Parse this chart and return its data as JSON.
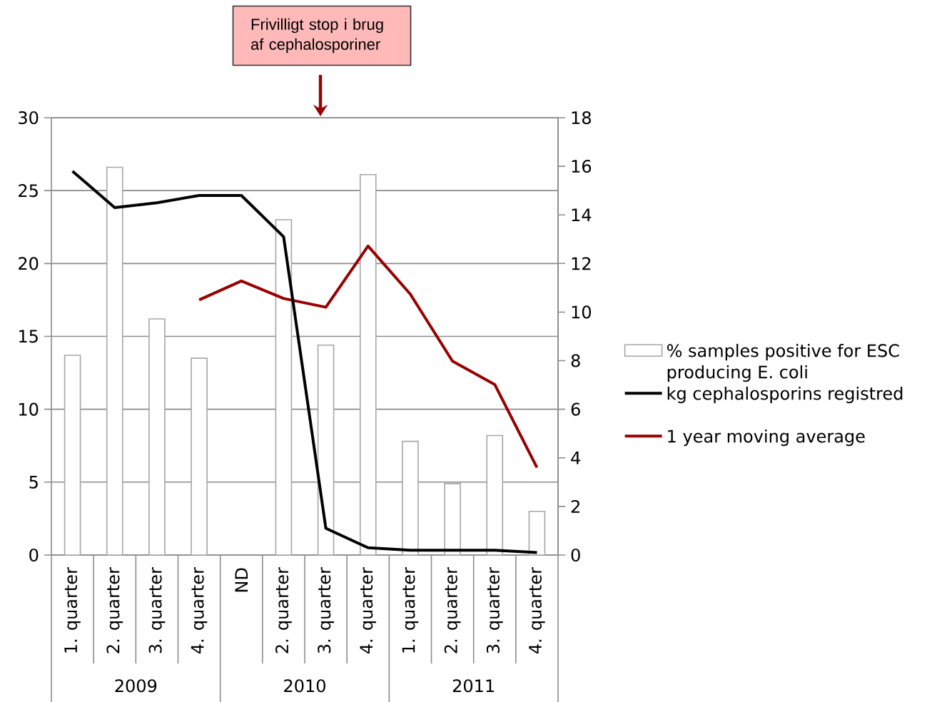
{
  "chart_data": {
    "type": "bar",
    "categories": [
      "1. quarter",
      "2. quarter",
      "3. quarter",
      "4. quarter",
      "ND",
      "2. quarter",
      "3. quarter",
      "4. quarter",
      "1. quarter",
      "2. quarter",
      "3. quarter",
      "4. quarter"
    ],
    "series": [
      {
        "name": "% samples positive for ESC producing E. coli",
        "color": "#a6a6a6",
        "values": [
          13.7,
          26.6,
          16.2,
          13.5,
          null,
          23.0,
          14.4,
          26.1,
          7.8,
          4.9,
          8.2,
          3.0
        ]
      },
      {
        "name": "kg cephalosporins registred",
        "type": "line",
        "axis": "y2",
        "color": "#000000",
        "values": [
          15.8,
          14.3,
          14.5,
          14.8,
          14.8,
          13.1,
          1.1,
          0.3,
          0.2,
          0.2,
          0.2,
          0.1
        ]
      },
      {
        "name": "1 year moving average",
        "type": "line",
        "color": "#990000",
        "values": [
          null,
          null,
          null,
          17.5,
          18.8,
          17.6,
          17.0,
          21.2,
          17.9,
          13.3,
          11.7,
          6.0
        ]
      }
    ],
    "ylim": [
      0,
      30
    ],
    "yticks": [
      0,
      5,
      10,
      15,
      20,
      25,
      30
    ],
    "y2lim": [
      0,
      18
    ],
    "y2ticks": [
      0,
      2,
      4,
      6,
      8,
      10,
      12,
      14,
      16,
      18
    ],
    "grid": "y",
    "legend": "right",
    "marker": "none",
    "line_style": "solid",
    "annotations": [
      "Frivilligt stop i brug af cephalosporiner",
      "2009",
      "2010",
      "2011"
    ]
  }
}
